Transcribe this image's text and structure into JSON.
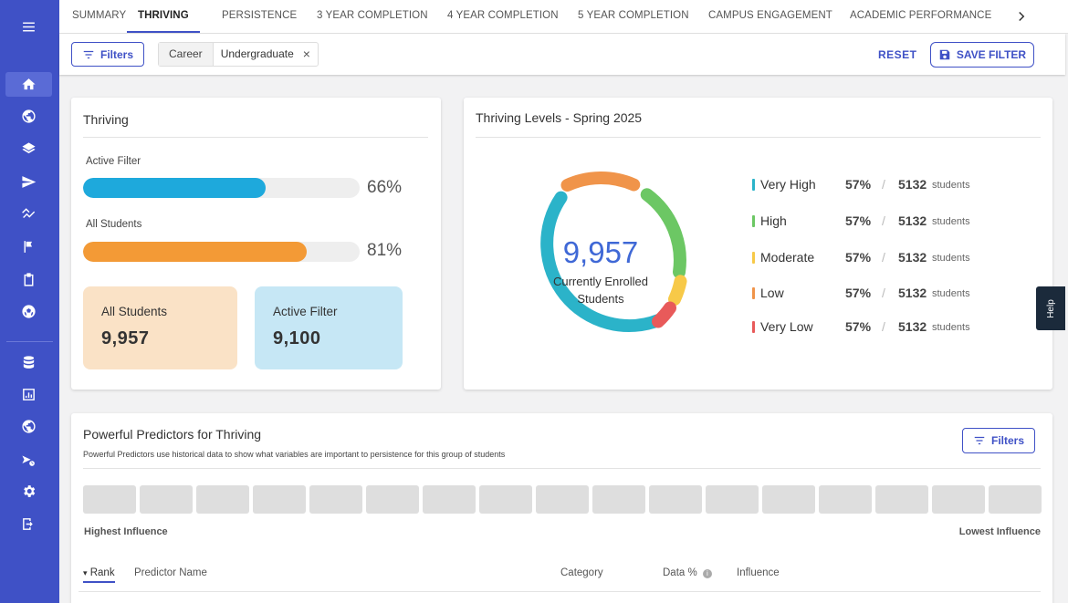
{
  "nav": {
    "items": [
      {
        "icon": "menu-icon"
      },
      {
        "icon": "home-icon",
        "active": true
      },
      {
        "icon": "globe-icon"
      },
      {
        "icon": "layers-icon"
      },
      {
        "icon": "send-icon"
      },
      {
        "icon": "trend-icon"
      },
      {
        "icon": "flag-icon"
      },
      {
        "icon": "clipboard-icon"
      },
      {
        "icon": "soccer-ball-icon"
      },
      {
        "icon": "database-icon"
      },
      {
        "icon": "bar-chart-icon"
      },
      {
        "icon": "globe-icon"
      },
      {
        "icon": "route-icon"
      },
      {
        "icon": "gear-icon"
      },
      {
        "icon": "logout-icon"
      }
    ]
  },
  "tabs": [
    "SUMMARY",
    "THRIVING",
    "PERSISTENCE",
    "3 YEAR COMPLETION",
    "4 YEAR COMPLETION",
    "5 YEAR COMPLETION",
    "CAMPUS ENGAGEMENT",
    "ACADEMIC PERFORMANCE"
  ],
  "active_tab": "THRIVING",
  "filterbar": {
    "filters_label": "Filters",
    "chip_key": "Career",
    "chip_value": "Undergraduate",
    "chip_remove": "×",
    "reset_label": "RESET",
    "save_label": "SAVE FILTER"
  },
  "thriving": {
    "title": "Thriving",
    "active_filter_label": "Active Filter",
    "active_filter_pct": "66%",
    "active_filter_value": 0.66,
    "all_students_label": "All Students",
    "all_students_pct": "81%",
    "all_students_value": 0.81,
    "stat_all_label": "All Students",
    "stat_all_value": "9,957",
    "stat_filter_label": "Active Filter",
    "stat_filter_value": "9,100"
  },
  "levels": {
    "title": "Thriving Levels - Spring 2025",
    "center_value": "9,957",
    "center_label_1": "Currently Enrolled",
    "center_label_2": "Students",
    "unit": "students",
    "slash": "/",
    "rows": [
      {
        "name": "Very High",
        "pct": "57%",
        "count": "5132",
        "color": "#2bb3c9"
      },
      {
        "name": "High",
        "pct": "57%",
        "count": "5132",
        "color": "#6cc764"
      },
      {
        "name": "Moderate",
        "pct": "57%",
        "count": "5132",
        "color": "#f7c948"
      },
      {
        "name": "Low",
        "pct": "57%",
        "count": "5132",
        "color": "#f0944a"
      },
      {
        "name": "Very Low",
        "pct": "57%",
        "count": "5132",
        "color": "#e85a5a"
      }
    ]
  },
  "predictors": {
    "title": "Powerful Predictors for Thriving",
    "subtitle": "Powerful Predictors use historical data to show what variables are important to persistence for this group of students",
    "filters_label": "Filters",
    "highest": "Highest Influence",
    "lowest": "Lowest Influence",
    "cols": {
      "rank": "Rank",
      "name": "Predictor Name",
      "category": "Category",
      "data": "Data %",
      "influence": "Influence"
    }
  },
  "help_label": "Help",
  "colors": {
    "accent": "#3f51c6",
    "active_bar": "#1ea9dc",
    "all_bar": "#f39a36"
  }
}
